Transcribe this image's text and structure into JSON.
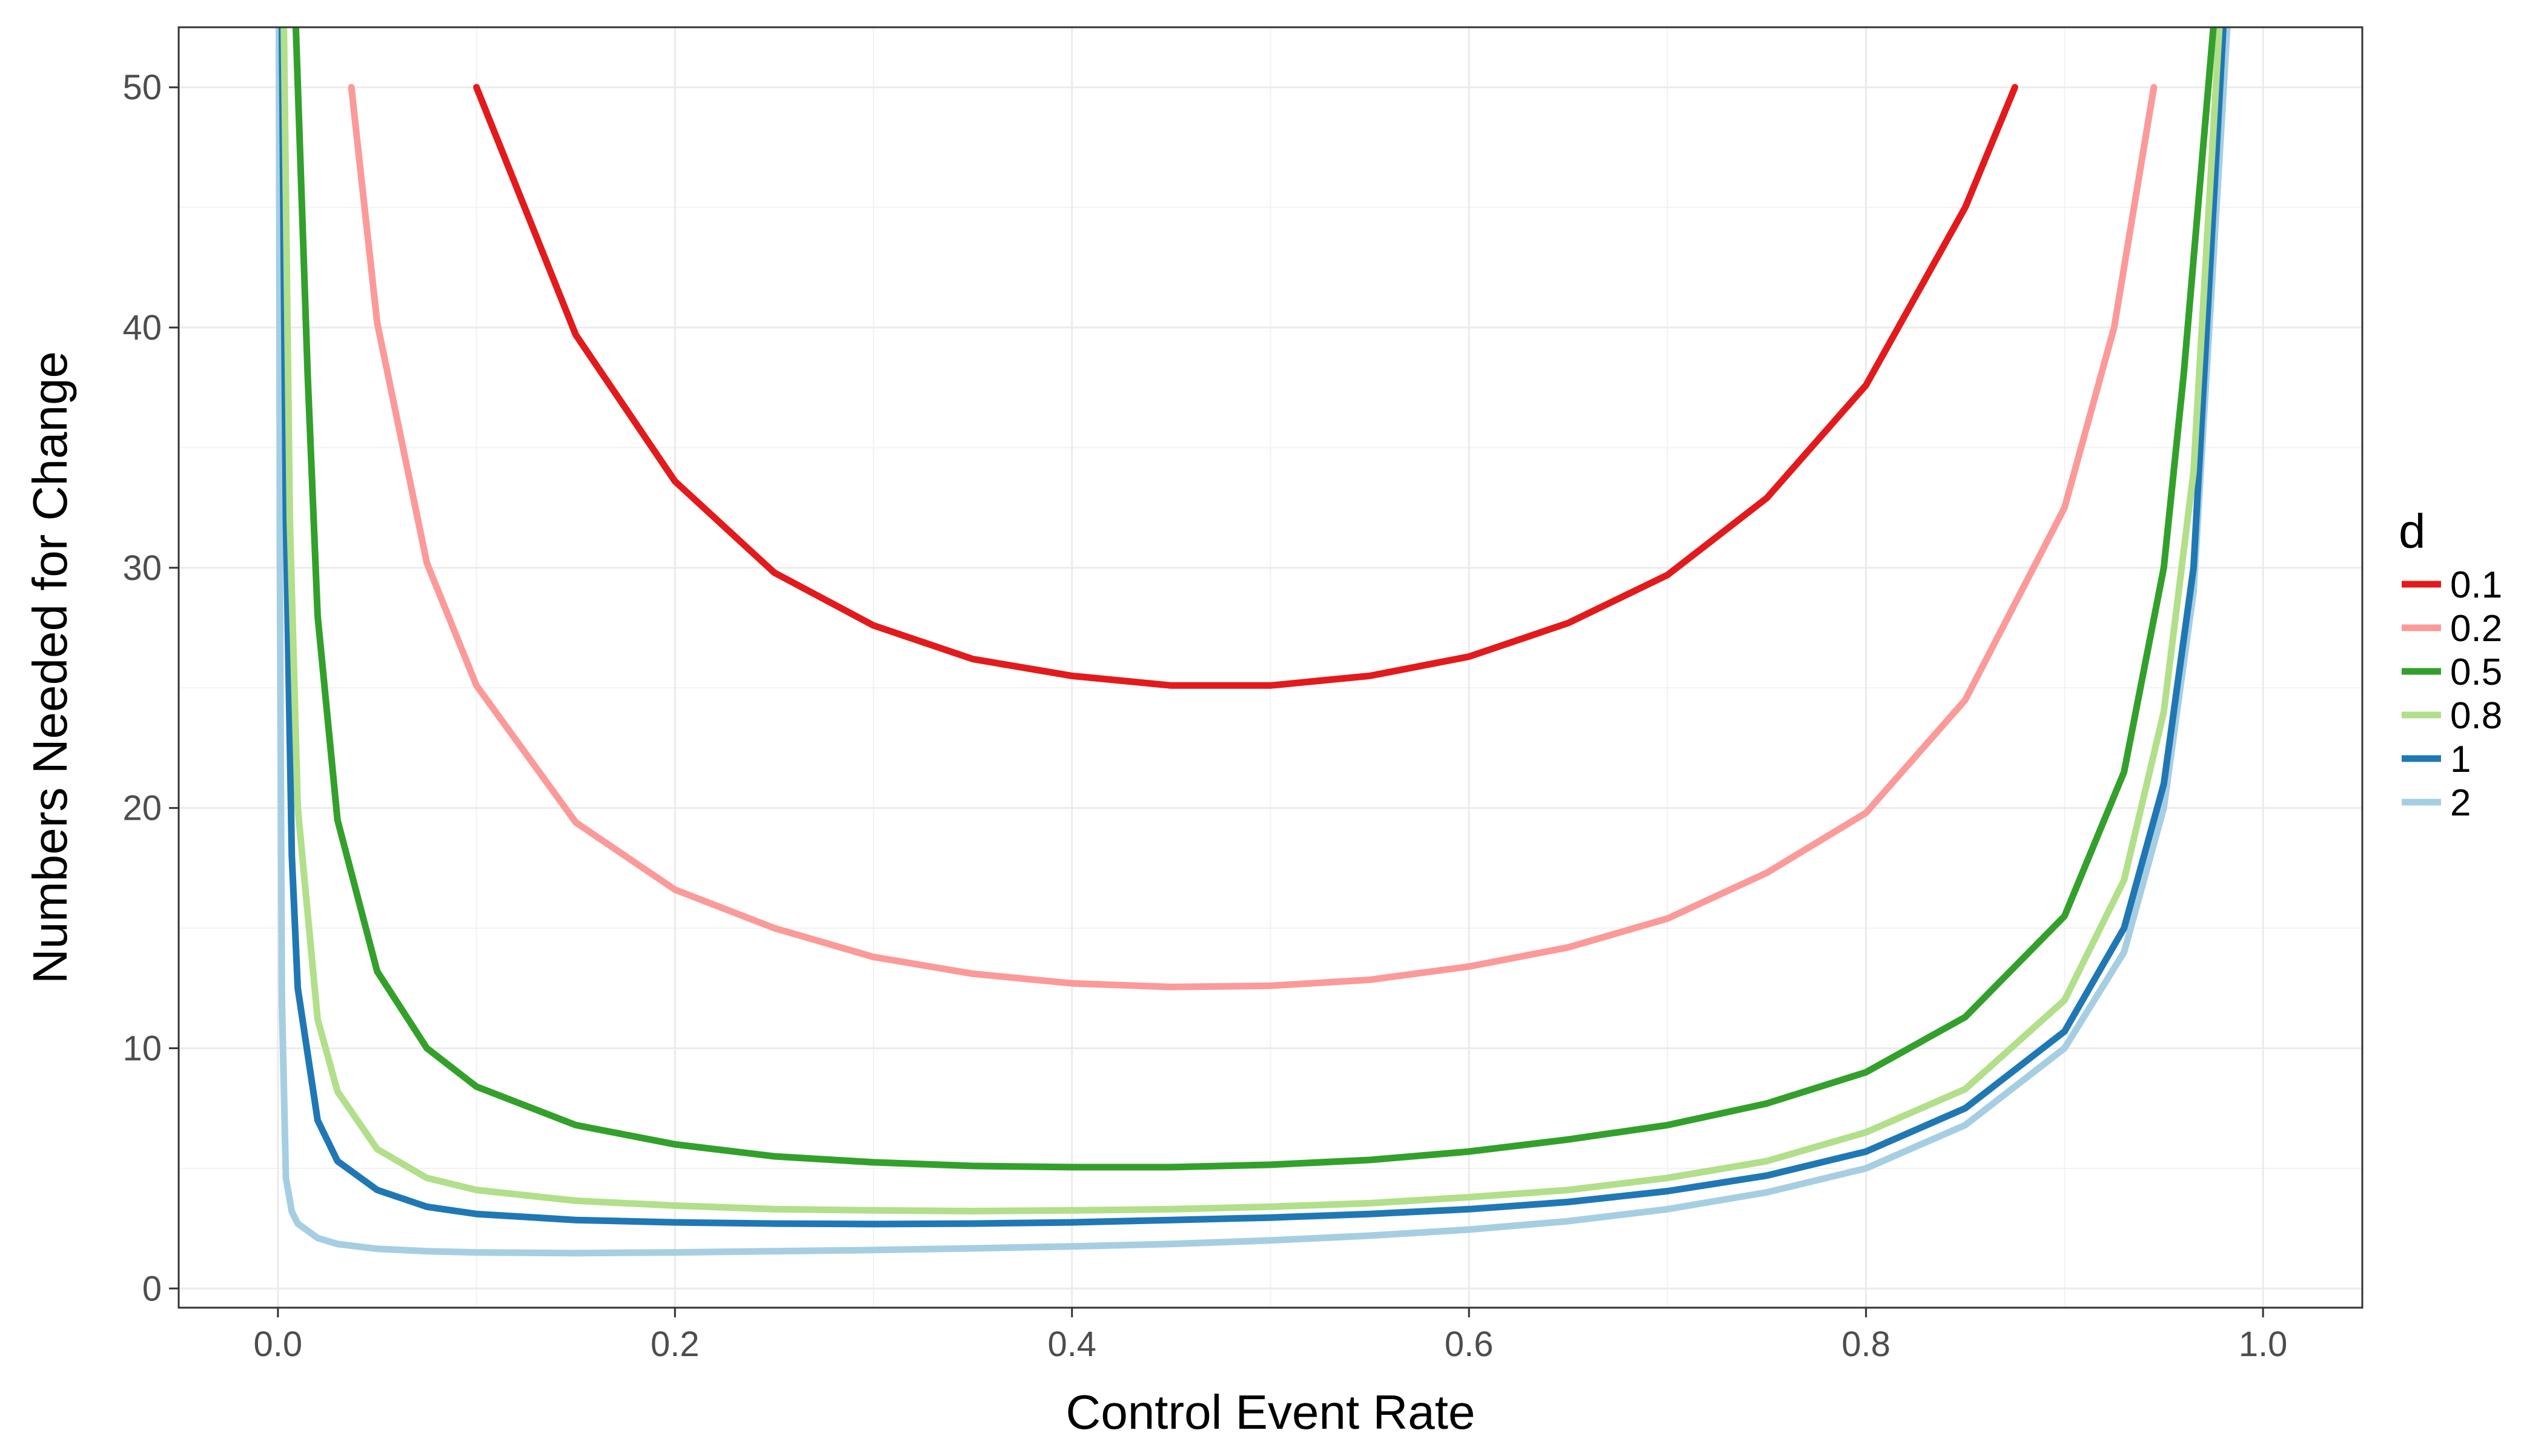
{
  "chart_data": {
    "type": "line",
    "xlabel": "Control Event Rate",
    "ylabel": "Numbers Needed for Change",
    "xlim": [
      -0.05,
      1.05
    ],
    "ylim": [
      -0.8,
      52.5
    ],
    "x_ticks": [
      0.0,
      0.2,
      0.4,
      0.6,
      0.8,
      1.0
    ],
    "x_tick_labels": [
      "0.0",
      "0.2",
      "0.4",
      "0.6",
      "0.8",
      "1.0"
    ],
    "y_ticks": [
      0,
      10,
      20,
      30,
      40,
      50
    ],
    "y_tick_labels": [
      "0",
      "10",
      "20",
      "30",
      "40",
      "50"
    ],
    "grid": true,
    "legend": {
      "title": "d",
      "position": "right",
      "entries": [
        "0.1",
        "0.2",
        "0.5",
        "0.8",
        "1",
        "2"
      ]
    },
    "series": [
      {
        "name": "0.1",
        "d": 0.1,
        "color": "#e31a1c",
        "points": [
          [
            0.1,
            50
          ],
          [
            0.15,
            39.7
          ],
          [
            0.2,
            33.6
          ],
          [
            0.25,
            29.8
          ],
          [
            0.3,
            27.6
          ],
          [
            0.35,
            26.2
          ],
          [
            0.4,
            25.5
          ],
          [
            0.45,
            25.1
          ],
          [
            0.5,
            25.1
          ],
          [
            0.55,
            25.5
          ],
          [
            0.6,
            26.3
          ],
          [
            0.65,
            27.7
          ],
          [
            0.7,
            29.7
          ],
          [
            0.75,
            32.9
          ],
          [
            0.8,
            37.6
          ],
          [
            0.85,
            45.0
          ],
          [
            0.875,
            50
          ]
        ]
      },
      {
        "name": "0.2",
        "d": 0.2,
        "color": "#fb9a99",
        "points": [
          [
            0.037,
            50
          ],
          [
            0.05,
            40.2
          ],
          [
            0.075,
            30.2
          ],
          [
            0.1,
            25.1
          ],
          [
            0.15,
            19.4
          ],
          [
            0.2,
            16.6
          ],
          [
            0.25,
            15.0
          ],
          [
            0.3,
            13.8
          ],
          [
            0.35,
            13.1
          ],
          [
            0.4,
            12.7
          ],
          [
            0.45,
            12.55
          ],
          [
            0.5,
            12.6
          ],
          [
            0.55,
            12.85
          ],
          [
            0.6,
            13.4
          ],
          [
            0.65,
            14.2
          ],
          [
            0.7,
            15.4
          ],
          [
            0.75,
            17.3
          ],
          [
            0.8,
            19.8
          ],
          [
            0.85,
            24.5
          ],
          [
            0.9,
            32.5
          ],
          [
            0.925,
            40.0
          ],
          [
            0.945,
            50
          ]
        ]
      },
      {
        "name": "0.5",
        "d": 0.5,
        "color": "#33a02c",
        "points": [
          [
            0.009,
            52.5
          ],
          [
            0.015,
            38
          ],
          [
            0.02,
            28
          ],
          [
            0.03,
            19.5
          ],
          [
            0.05,
            13.2
          ],
          [
            0.075,
            10.0
          ],
          [
            0.1,
            8.4
          ],
          [
            0.15,
            6.8
          ],
          [
            0.2,
            6.0
          ],
          [
            0.25,
            5.5
          ],
          [
            0.3,
            5.25
          ],
          [
            0.35,
            5.1
          ],
          [
            0.4,
            5.05
          ],
          [
            0.45,
            5.05
          ],
          [
            0.5,
            5.15
          ],
          [
            0.55,
            5.35
          ],
          [
            0.6,
            5.7
          ],
          [
            0.65,
            6.2
          ],
          [
            0.7,
            6.8
          ],
          [
            0.75,
            7.7
          ],
          [
            0.8,
            9.0
          ],
          [
            0.85,
            11.3
          ],
          [
            0.9,
            15.5
          ],
          [
            0.93,
            21.5
          ],
          [
            0.95,
            30
          ],
          [
            0.96,
            38
          ],
          [
            0.975,
            52.5
          ]
        ]
      },
      {
        "name": "0.8",
        "d": 0.8,
        "color": "#b2df8a",
        "points": [
          [
            0.003,
            52.5
          ],
          [
            0.006,
            32
          ],
          [
            0.01,
            20
          ],
          [
            0.02,
            11.2
          ],
          [
            0.03,
            8.2
          ],
          [
            0.05,
            5.8
          ],
          [
            0.075,
            4.6
          ],
          [
            0.1,
            4.1
          ],
          [
            0.15,
            3.65
          ],
          [
            0.2,
            3.45
          ],
          [
            0.25,
            3.3
          ],
          [
            0.3,
            3.25
          ],
          [
            0.35,
            3.22
          ],
          [
            0.4,
            3.25
          ],
          [
            0.45,
            3.3
          ],
          [
            0.5,
            3.4
          ],
          [
            0.55,
            3.55
          ],
          [
            0.6,
            3.8
          ],
          [
            0.65,
            4.1
          ],
          [
            0.7,
            4.6
          ],
          [
            0.75,
            5.3
          ],
          [
            0.8,
            6.5
          ],
          [
            0.85,
            8.3
          ],
          [
            0.9,
            12.0
          ],
          [
            0.93,
            17.0
          ],
          [
            0.95,
            24
          ],
          [
            0.965,
            34
          ],
          [
            0.978,
            52.5
          ]
        ]
      },
      {
        "name": "1",
        "d": 1,
        "color": "#1f78b4",
        "points": [
          [
            0.002,
            52.5
          ],
          [
            0.004,
            32
          ],
          [
            0.007,
            18
          ],
          [
            0.01,
            12.5
          ],
          [
            0.02,
            7.0
          ],
          [
            0.03,
            5.3
          ],
          [
            0.05,
            4.1
          ],
          [
            0.075,
            3.4
          ],
          [
            0.1,
            3.1
          ],
          [
            0.15,
            2.85
          ],
          [
            0.2,
            2.75
          ],
          [
            0.25,
            2.7
          ],
          [
            0.3,
            2.68
          ],
          [
            0.35,
            2.7
          ],
          [
            0.4,
            2.75
          ],
          [
            0.45,
            2.85
          ],
          [
            0.5,
            2.95
          ],
          [
            0.55,
            3.1
          ],
          [
            0.6,
            3.3
          ],
          [
            0.65,
            3.6
          ],
          [
            0.7,
            4.05
          ],
          [
            0.75,
            4.7
          ],
          [
            0.8,
            5.7
          ],
          [
            0.85,
            7.5
          ],
          [
            0.9,
            10.7
          ],
          [
            0.93,
            15.0
          ],
          [
            0.95,
            21
          ],
          [
            0.965,
            30
          ],
          [
            0.98,
            52.5
          ]
        ]
      },
      {
        "name": "2",
        "d": 2,
        "color": "#a6cee3",
        "points": [
          [
            0.0005,
            52.5
          ],
          [
            0.001,
            30
          ],
          [
            0.002,
            12
          ],
          [
            0.004,
            4.6
          ],
          [
            0.007,
            3.2
          ],
          [
            0.01,
            2.7
          ],
          [
            0.02,
            2.1
          ],
          [
            0.03,
            1.85
          ],
          [
            0.05,
            1.65
          ],
          [
            0.075,
            1.55
          ],
          [
            0.1,
            1.5
          ],
          [
            0.15,
            1.47
          ],
          [
            0.2,
            1.5
          ],
          [
            0.25,
            1.55
          ],
          [
            0.3,
            1.6
          ],
          [
            0.35,
            1.67
          ],
          [
            0.4,
            1.75
          ],
          [
            0.45,
            1.85
          ],
          [
            0.5,
            2.0
          ],
          [
            0.55,
            2.2
          ],
          [
            0.6,
            2.45
          ],
          [
            0.65,
            2.8
          ],
          [
            0.7,
            3.3
          ],
          [
            0.75,
            4.0
          ],
          [
            0.8,
            5.0
          ],
          [
            0.85,
            6.8
          ],
          [
            0.9,
            10.0
          ],
          [
            0.93,
            14.0
          ],
          [
            0.95,
            20
          ],
          [
            0.965,
            29
          ],
          [
            0.982,
            52.5
          ]
        ]
      }
    ]
  }
}
